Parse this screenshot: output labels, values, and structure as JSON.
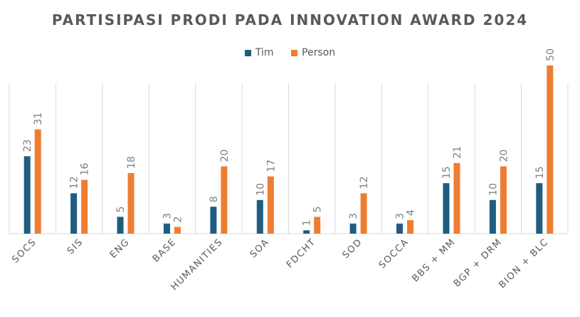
{
  "chart_data": {
    "type": "bar",
    "title": "PARTISIPASI PRODI PADA INNOVATION AWARD 2024",
    "categories": [
      "SOCS",
      "SIS",
      "ENG",
      "BASE",
      "HUMANITIES",
      "SOA",
      "FDCHT",
      "SOD",
      "SOCCA",
      "BBS + MM",
      "BGP + DRM",
      "BION + BLC"
    ],
    "series": [
      {
        "name": "Tim",
        "color": "#1f5c80",
        "values": [
          23,
          12,
          5,
          3,
          8,
          10,
          1,
          3,
          3,
          15,
          10,
          15
        ]
      },
      {
        "name": "Person",
        "color": "#ee7d31",
        "values": [
          31,
          16,
          18,
          2,
          20,
          17,
          5,
          12,
          4,
          21,
          20,
          50
        ]
      }
    ],
    "ylim": [
      0,
      50
    ],
    "legend_position": "top",
    "grid": false
  }
}
